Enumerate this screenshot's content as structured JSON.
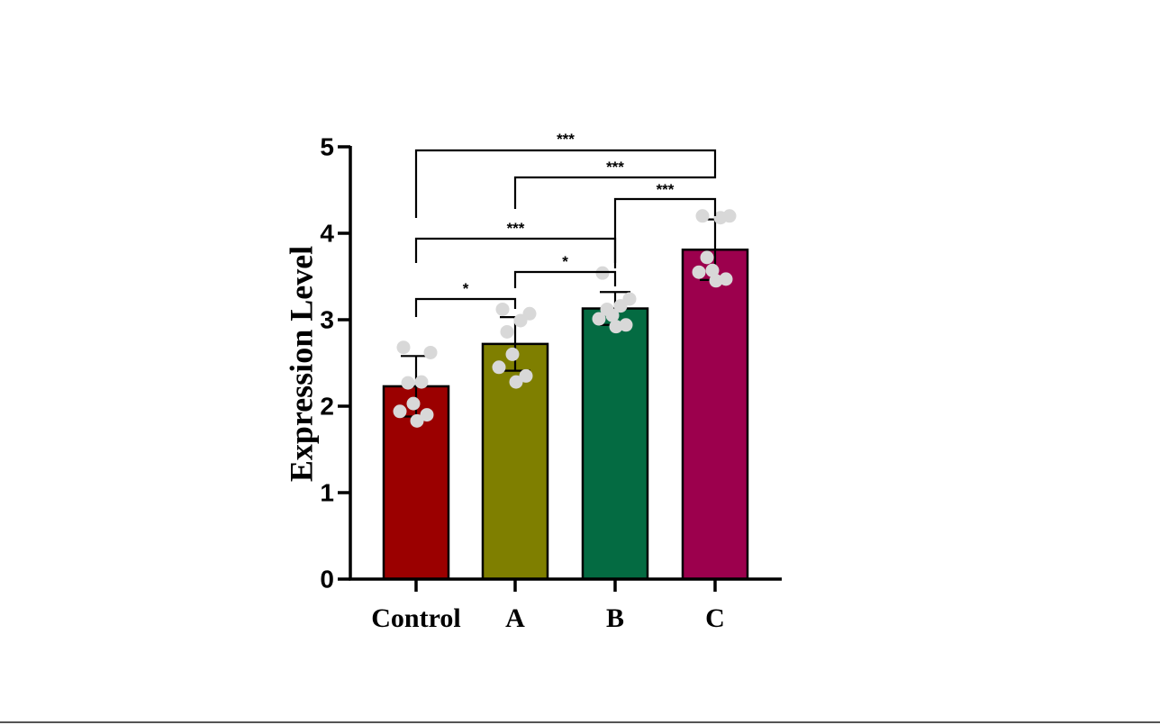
{
  "chart_data": {
    "type": "bar",
    "ylabel": "Expression Level",
    "xlabel": "",
    "ylim": [
      0,
      5
    ],
    "yticks": [
      "0",
      "1",
      "2",
      "3",
      "4",
      "5"
    ],
    "categories": [
      "Control",
      "A",
      "B",
      "C"
    ],
    "values": [
      2.23,
      2.72,
      3.13,
      3.81
    ],
    "errors": [
      0.35,
      0.31,
      0.19,
      0.35
    ],
    "colors": [
      "#9b0000",
      "#7f7f00",
      "#046b42",
      "#9c004d"
    ],
    "point_color": "#d8d8d8",
    "points": [
      [
        2.68,
        2.62,
        2.28,
        2.27,
        2.03,
        1.94,
        1.9,
        1.83
      ],
      [
        3.12,
        3.07,
        2.99,
        2.86,
        2.6,
        2.45,
        2.35,
        2.28
      ],
      [
        3.54,
        3.24,
        3.16,
        3.12,
        3.05,
        3.01,
        2.94,
        2.92
      ],
      [
        4.2,
        4.2,
        4.18,
        3.72,
        3.57,
        3.55,
        3.47,
        3.45
      ]
    ],
    "comparisons": [
      {
        "from": "Control",
        "to": "A",
        "label": "*"
      },
      {
        "from": "A",
        "to": "B",
        "label": "*"
      },
      {
        "from": "Control",
        "to": "B",
        "label": "***"
      },
      {
        "from": "B",
        "to": "C",
        "label": "***"
      },
      {
        "from": "A",
        "to": "C",
        "label": "***"
      },
      {
        "from": "Control",
        "to": "C",
        "label": "***"
      }
    ]
  }
}
